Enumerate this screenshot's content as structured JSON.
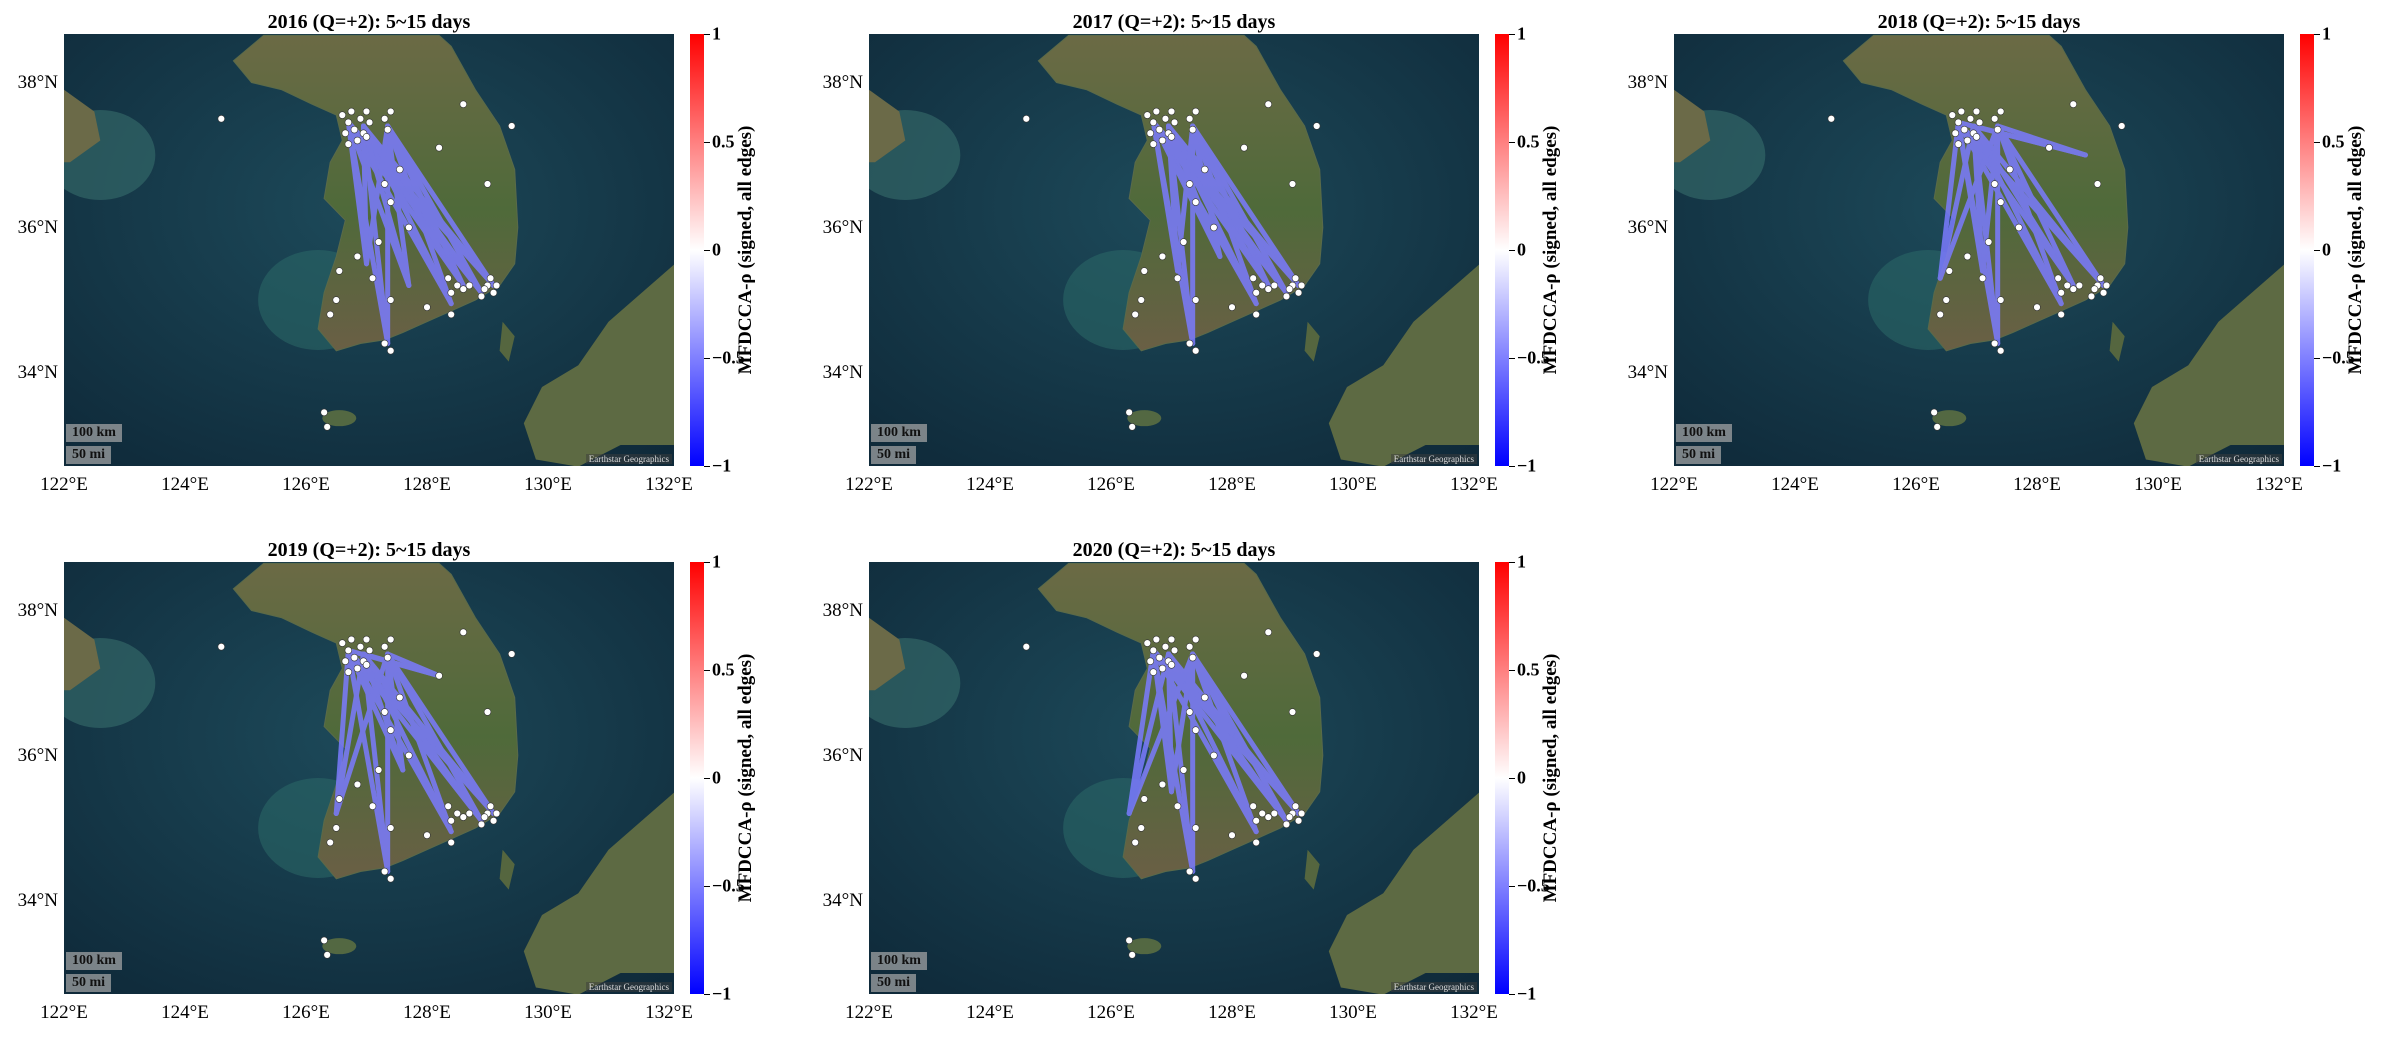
{
  "colorbar": {
    "label": "MFDCCA-ρ (signed, all edges)",
    "ticks": [
      "1",
      "0.5",
      "0",
      "−0.5",
      "−1"
    ],
    "colors": {
      "pos": "#ff0000",
      "mid": "#ffffff",
      "neg": "#0000ff"
    }
  },
  "axes": {
    "x_ticks": [
      "122°E",
      "124°E",
      "126°E",
      "128°E",
      "130°E",
      "132°E"
    ],
    "y_ticks": [
      "38°N",
      "36°N",
      "34°N"
    ]
  },
  "map": {
    "scale_km": "100 km",
    "scale_mi": "50 mi",
    "attribution": "Earthstar Geographics",
    "edge_color": "#7b7bff"
  },
  "panels": [
    {
      "title": "2016 (Q=+2): 5~15 days"
    },
    {
      "title": "2017 (Q=+2): 5~15 days"
    },
    {
      "title": "2018 (Q=+2): 5~15 days"
    },
    {
      "title": "2019 (Q=+2): 5~15 days"
    },
    {
      "title": "2020 (Q=+2): 5~15 days"
    }
  ]
}
